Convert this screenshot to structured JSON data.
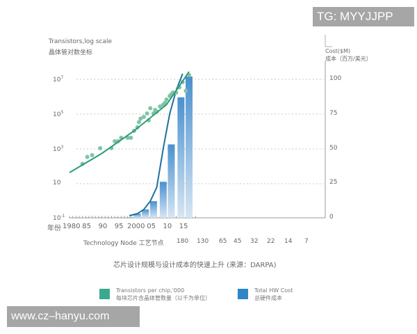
{
  "watermarks": {
    "top_right": "TG: MYYJJPP",
    "bottom_left": "www.cz–hanyu.com"
  },
  "left_axis": {
    "title_en": "Transistors,log scale",
    "title_zh": "晶体管对数坐标",
    "ticks": [
      {
        "base": "10",
        "exp": "7",
        "y": 114
      },
      {
        "base": "10",
        "exp": "5",
        "y": 164
      },
      {
        "base": "10",
        "exp": "3",
        "y": 214
      },
      {
        "base": "10",
        "exp": "",
        "y": 264
      },
      {
        "base": "10",
        "exp": "-1",
        "y": 313
      }
    ]
  },
  "right_axis": {
    "title_en": "Cost($M)",
    "title_zh": "成本（百万/美元）",
    "ticks": [
      "100",
      "75",
      "50",
      "25",
      "0"
    ]
  },
  "x_axis": {
    "year_label": "年份",
    "years": [
      "1980",
      "85",
      "90",
      "95",
      "2000",
      "05",
      "10",
      "15"
    ],
    "node_label": "Technology Node 工艺节点",
    "nodes": [
      "180",
      "130",
      "65",
      "45",
      "32",
      "22",
      "14",
      "7"
    ]
  },
  "caption": "芯片设计规模与设计成本的快速上升 (来源：DARPA)",
  "legend": [
    {
      "en": "Transistors per chip,'000",
      "zh": "每块芯片含晶体管数量（以千为单位）",
      "color": "#3aaa8f"
    },
    {
      "en": "Total HW Cost",
      "zh": "总硬件成本",
      "color": "#2f86c6"
    }
  ],
  "colors": {
    "trend_line": "#2e9a78",
    "dots": "#7fc4a4",
    "cost_line": "#1f6f9e",
    "bar_top": "#4a90cf",
    "bar_bottom": "#d6e6f3",
    "grid": "#b5b5b5"
  },
  "chart_data": {
    "type": "bar+line+scatter",
    "title": "芯片设计规模与设计成本的快速上升 (来源：DARPA)",
    "xlabel": "年份 / Technology Node 工艺节点",
    "ylabel_left": "Transistors,log scale 晶体管对数坐标",
    "ylabel_right": "Cost($M) 成本（百万/美元）",
    "x_range": [
      1980,
      2018
    ],
    "ylim_left_log10": [
      -1,
      7.5
    ],
    "ylim_right": [
      0,
      100
    ],
    "grid": "horizontal dashed at 10^7, 10^5, 10^3, 10",
    "legend_position": "bottom",
    "series": [
      {
        "name": "Transistors per chip,'000 (trend)",
        "type": "line",
        "axis": "left",
        "x": [
          1980,
          1990,
          2000,
          2010,
          2017
        ],
        "log10_values": [
          1.6,
          2.7,
          4.0,
          5.5,
          7.4
        ]
      },
      {
        "name": "Transistors per chip,'000 (observations)",
        "type": "scatter",
        "axis": "left",
        "x": [
          1984,
          1985.5,
          1987,
          1989.5,
          1993,
          1994,
          1995,
          1996,
          1998,
          1999,
          2000,
          2001,
          2001.5,
          2002,
          2003,
          2004,
          2004.5,
          2005,
          2006,
          2006.5,
          2007,
          2008,
          2009,
          2009.5,
          2010,
          2011,
          2011.5,
          2012,
          2013,
          2014,
          2015,
          2016,
          2017
        ],
        "log10_values": [
          2.1,
          2.5,
          2.6,
          3.0,
          3.0,
          3.4,
          3.4,
          3.6,
          3.6,
          3.6,
          4.0,
          4.2,
          4.5,
          4.7,
          4.8,
          5.0,
          4.6,
          5.3,
          5.0,
          5.2,
          5.1,
          5.4,
          5.5,
          5.6,
          5.8,
          6.0,
          6.1,
          6.2,
          6.2,
          6.5,
          6.8,
          6.3,
          7.2
        ]
      },
      {
        "name": "Total HW Cost",
        "type": "bar",
        "axis": "right",
        "categories": [
          "180",
          "130",
          "65",
          "45",
          "32",
          "22",
          "14",
          "7"
        ],
        "x": [
          1999,
          2001,
          2003.5,
          2006,
          2009,
          2011.5,
          2014.5,
          2017
        ],
        "values": [
          0.5,
          3,
          6,
          12,
          26,
          53,
          87,
          102
        ]
      },
      {
        "name": "Total HW Cost (curve)",
        "type": "line",
        "axis": "right",
        "x": [
          1998.5,
          2001,
          2003,
          2005,
          2007,
          2009,
          2011,
          2013,
          2015
        ],
        "values": [
          1.5,
          3,
          6,
          12,
          22,
          50,
          75,
          92,
          104
        ]
      }
    ]
  }
}
